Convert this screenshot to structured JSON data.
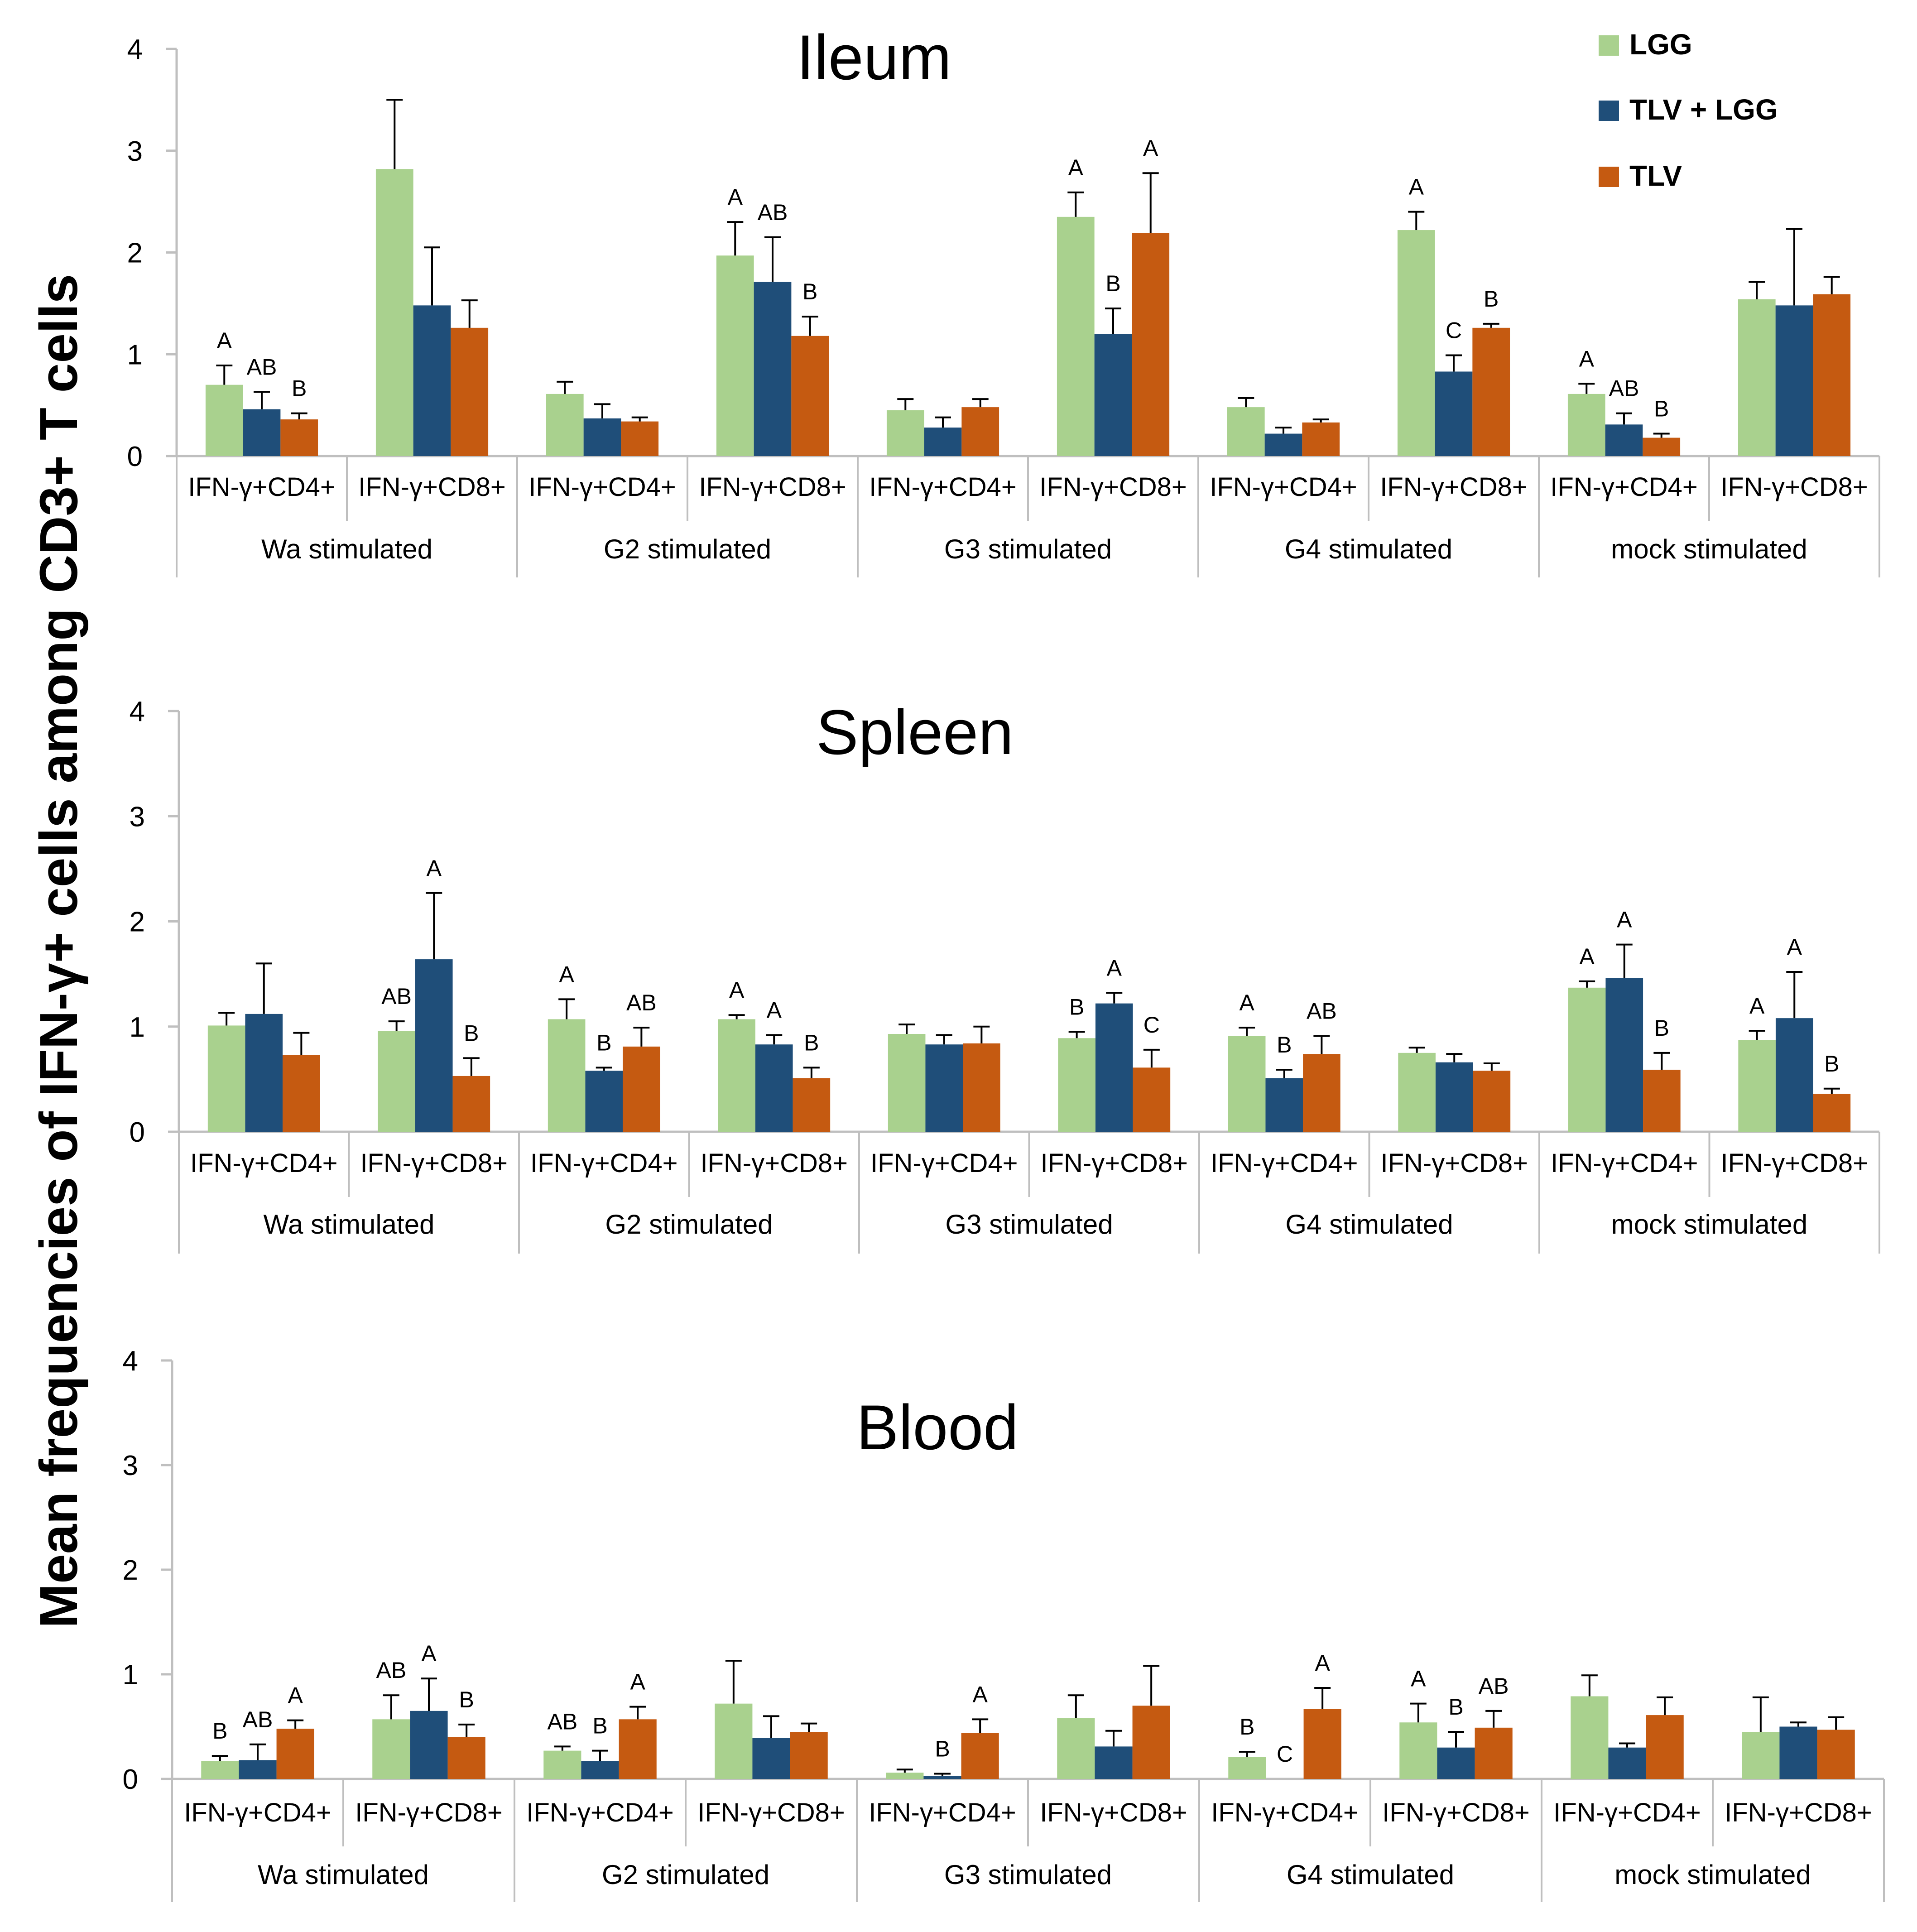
{
  "y_axis_label": "Mean frequencies of IFN-γ+ cells among CD3+ T cells",
  "legend": [
    {
      "name": "LGG",
      "color": "#a9d18e"
    },
    {
      "name": "TLV + LGG",
      "color": "#1f4e79"
    },
    {
      "name": "TLV",
      "color": "#c55a11"
    }
  ],
  "chart_data": [
    {
      "type": "bar",
      "title": "Ileum",
      "ylim": [
        0,
        4
      ],
      "yticks": [
        "0",
        "1",
        "2",
        "3",
        "4"
      ],
      "groups": [
        "Wa stimulated",
        "G2 stimulated",
        "G3 stimulated",
        "G4 stimulated",
        "mock stimulated"
      ],
      "categories": [
        "IFN-γ+CD4+",
        "IFN-γ+CD8+",
        "IFN-γ+CD4+",
        "IFN-γ+CD8+",
        "IFN-γ+CD4+",
        "IFN-γ+CD8+",
        "IFN-γ+CD4+",
        "IFN-γ+CD8+",
        "IFN-γ+CD4+",
        "IFN-γ+CD8+"
      ],
      "series": [
        {
          "name": "LGG",
          "values": [
            0.7,
            2.82,
            0.61,
            1.97,
            0.45,
            2.35,
            0.48,
            2.22,
            0.61,
            1.54
          ],
          "errors": [
            0.19,
            0.68,
            0.12,
            0.33,
            0.11,
            0.24,
            0.09,
            0.18,
            0.1,
            0.17
          ],
          "letters": [
            "A",
            "",
            "",
            "A",
            "",
            "A",
            "",
            "A",
            "A",
            ""
          ]
        },
        {
          "name": "TLV + LGG",
          "values": [
            0.46,
            1.48,
            0.37,
            1.71,
            0.28,
            1.2,
            0.22,
            0.83,
            0.31,
            1.48
          ],
          "errors": [
            0.17,
            0.57,
            0.14,
            0.44,
            0.1,
            0.25,
            0.06,
            0.16,
            0.11,
            0.75
          ],
          "letters": [
            "AB",
            "",
            "",
            "AB",
            "",
            "B",
            "",
            "C",
            "AB",
            ""
          ]
        },
        {
          "name": "TLV",
          "values": [
            0.36,
            1.26,
            0.34,
            1.18,
            0.48,
            2.19,
            0.33,
            1.26,
            0.18,
            1.59
          ],
          "errors": [
            0.06,
            0.27,
            0.04,
            0.19,
            0.08,
            0.59,
            0.03,
            0.04,
            0.04,
            0.17
          ],
          "letters": [
            "B",
            "",
            "",
            "B",
            "",
            "A",
            "",
            "B",
            "B",
            ""
          ]
        }
      ]
    },
    {
      "type": "bar",
      "title": "Spleen",
      "ylim": [
        0,
        4
      ],
      "yticks": [
        "0",
        "1",
        "2",
        "3",
        "4"
      ],
      "groups": [
        "Wa stimulated",
        "G2 stimulated",
        "G3 stimulated",
        "G4 stimulated",
        "mock stimulated"
      ],
      "categories": [
        "IFN-γ+CD4+",
        "IFN-γ+CD8+",
        "IFN-γ+CD4+",
        "IFN-γ+CD8+",
        "IFN-γ+CD4+",
        "IFN-γ+CD8+",
        "IFN-γ+CD4+",
        "IFN-γ+CD8+",
        "IFN-γ+CD4+",
        "IFN-γ+CD8+"
      ],
      "series": [
        {
          "name": "LGG",
          "values": [
            1.01,
            0.96,
            1.07,
            1.07,
            0.93,
            0.89,
            0.91,
            0.75,
            1.37,
            0.87
          ],
          "errors": [
            0.12,
            0.09,
            0.19,
            0.04,
            0.09,
            0.06,
            0.08,
            0.05,
            0.06,
            0.09
          ],
          "letters": [
            "",
            "AB",
            "A",
            "A",
            "",
            "B",
            "A",
            "",
            "A",
            "A"
          ]
        },
        {
          "name": "TLV + LGG",
          "values": [
            1.12,
            1.64,
            0.58,
            0.83,
            0.83,
            1.22,
            0.51,
            0.66,
            1.46,
            1.08
          ],
          "errors": [
            0.48,
            0.63,
            0.03,
            0.09,
            0.09,
            0.1,
            0.08,
            0.08,
            0.32,
            0.44
          ],
          "letters": [
            "",
            "A",
            "B",
            "A",
            "",
            "A",
            "B",
            "",
            "A",
            "A"
          ]
        },
        {
          "name": "TLV",
          "values": [
            0.73,
            0.53,
            0.81,
            0.51,
            0.84,
            0.61,
            0.74,
            0.58,
            0.59,
            0.36
          ],
          "errors": [
            0.21,
            0.17,
            0.18,
            0.1,
            0.16,
            0.17,
            0.17,
            0.07,
            0.16,
            0.05
          ],
          "letters": [
            "",
            "B",
            "AB",
            "B",
            "",
            "C",
            "AB",
            "",
            "B",
            "B"
          ]
        }
      ]
    },
    {
      "type": "bar",
      "title": "Blood",
      "ylim": [
        0,
        4
      ],
      "yticks": [
        "0",
        "1",
        "2",
        "3",
        "4"
      ],
      "groups": [
        "Wa stimulated",
        "G2 stimulated",
        "G3 stimulated",
        "G4 stimulated",
        "mock stimulated"
      ],
      "categories": [
        "IFN-γ+CD4+",
        "IFN-γ+CD8+",
        "IFN-γ+CD4+",
        "IFN-γ+CD8+",
        "IFN-γ+CD4+",
        "IFN-γ+CD8+",
        "IFN-γ+CD4+",
        "IFN-γ+CD8+",
        "IFN-γ+CD4+",
        "IFN-γ+CD8+"
      ],
      "series": [
        {
          "name": "LGG",
          "values": [
            0.17,
            0.57,
            0.27,
            0.72,
            0.06,
            0.58,
            0.21,
            0.54,
            0.79,
            0.45
          ],
          "errors": [
            0.05,
            0.23,
            0.04,
            0.41,
            0.03,
            0.22,
            0.05,
            0.18,
            0.2,
            0.33
          ],
          "letters": [
            "B",
            "AB",
            "AB",
            "",
            "",
            "",
            "B",
            "A",
            "",
            ""
          ]
        },
        {
          "name": "TLV + LGG",
          "values": [
            0.18,
            0.65,
            0.17,
            0.39,
            0.03,
            0.31,
            0.0,
            0.3,
            0.3,
            0.5
          ],
          "errors": [
            0.15,
            0.31,
            0.1,
            0.21,
            0.02,
            0.15,
            0.0,
            0.15,
            0.04,
            0.04
          ],
          "letters": [
            "AB",
            "A",
            "B",
            "",
            "B",
            "",
            "C",
            "B",
            "",
            ""
          ]
        },
        {
          "name": "TLV",
          "values": [
            0.48,
            0.4,
            0.57,
            0.45,
            0.44,
            0.7,
            0.67,
            0.49,
            0.61,
            0.47
          ],
          "errors": [
            0.08,
            0.12,
            0.12,
            0.08,
            0.13,
            0.38,
            0.2,
            0.16,
            0.17,
            0.12
          ],
          "letters": [
            "A",
            "B",
            "A",
            "",
            "A",
            "",
            "A",
            "AB",
            "",
            ""
          ]
        }
      ]
    }
  ]
}
